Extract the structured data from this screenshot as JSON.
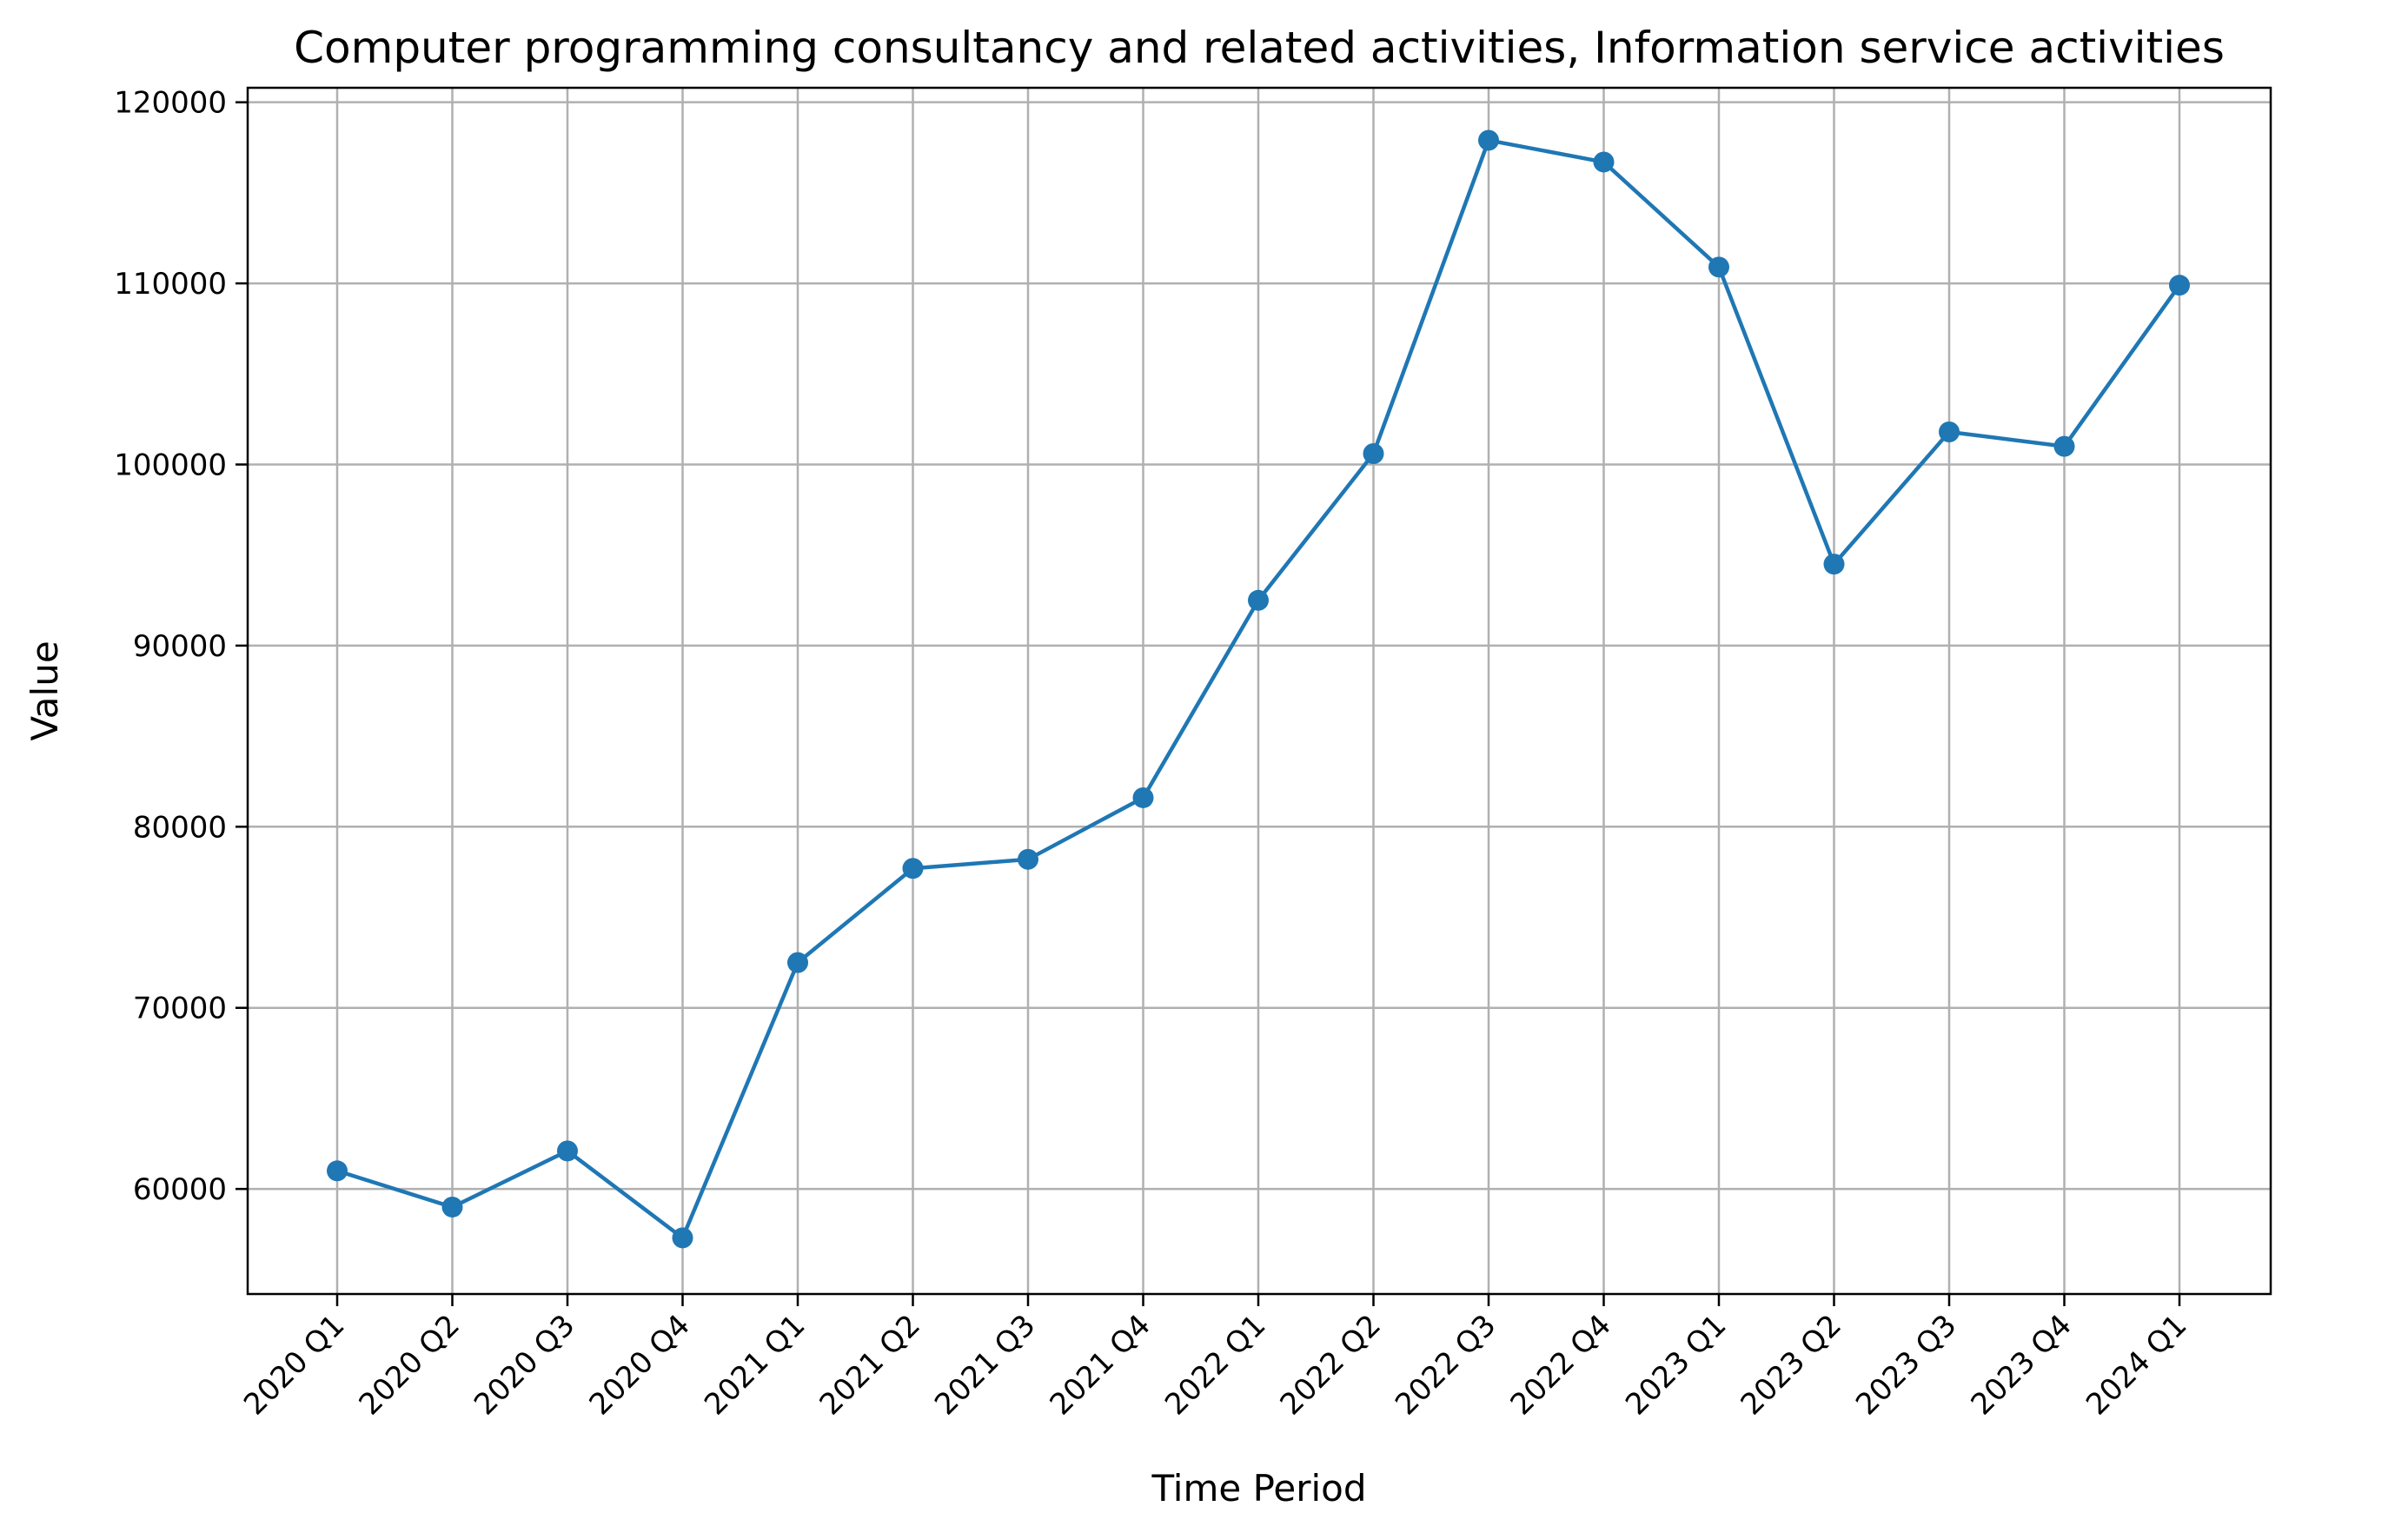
{
  "chart_data": {
    "type": "line",
    "title": "Computer programming consultancy and related activities, Information service activities",
    "xlabel": "Time Period",
    "ylabel": "Value",
    "categories": [
      "2020 Q1",
      "2020 Q2",
      "2020 Q3",
      "2020 Q4",
      "2021 Q1",
      "2021 Q2",
      "2021 Q3",
      "2021 Q4",
      "2022 Q1",
      "2022 Q2",
      "2022 Q3",
      "2022 Q4",
      "2023 Q1",
      "2023 Q2",
      "2023 Q3",
      "2023 Q4",
      "2024 Q1"
    ],
    "series": [
      {
        "values": [
          61000,
          59000,
          62100,
          57300,
          72500,
          77700,
          78200,
          81600,
          92500,
          100600,
          117900,
          116700,
          110900,
          94500,
          101800,
          101000,
          109900
        ],
        "color": "#1f77b4",
        "marker": "circle"
      }
    ],
    "ylim": [
      54200,
      120800
    ],
    "yticks": [
      60000,
      70000,
      80000,
      90000,
      100000,
      110000,
      120000
    ],
    "ytick_labels": [
      "60000",
      "70000",
      "80000",
      "90000",
      "100000",
      "110000",
      "120000"
    ],
    "grid": true,
    "legend": "none"
  }
}
